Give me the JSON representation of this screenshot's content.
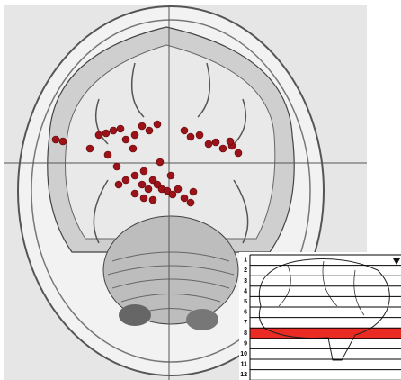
{
  "inset": {
    "slices": [
      "1",
      "2",
      "3",
      "4",
      "5",
      "6",
      "7",
      "8",
      "9",
      "10",
      "11",
      "12"
    ],
    "highlighted_slice": 8,
    "highlight_color": "#e8140c"
  }
}
